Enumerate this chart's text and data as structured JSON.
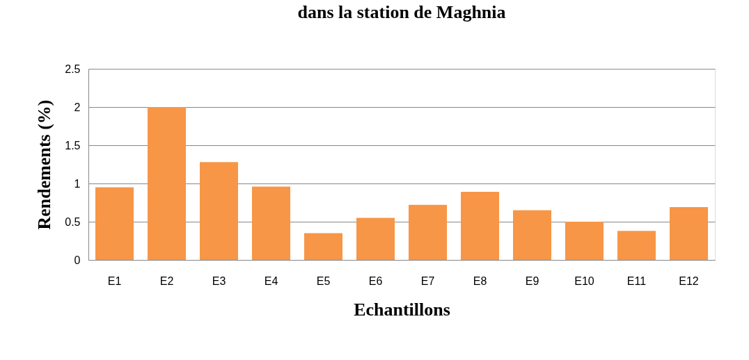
{
  "chart_data": {
    "type": "bar",
    "title": "dans la station de Maghnia",
    "xlabel": "Echantillons",
    "ylabel": "Rendements (%)",
    "categories": [
      "E1",
      "E2",
      "E3",
      "E4",
      "E5",
      "E6",
      "E7",
      "E8",
      "E9",
      "E10",
      "E11",
      "E12"
    ],
    "values": [
      0.95,
      2.0,
      1.28,
      0.96,
      0.35,
      0.55,
      0.72,
      0.89,
      0.65,
      0.5,
      0.38,
      0.69
    ],
    "color": "#f79646",
    "ylim": [
      0,
      2.5
    ],
    "yticks": [
      0,
      0.5,
      1,
      1.5,
      2,
      2.5
    ],
    "grid": "y"
  }
}
